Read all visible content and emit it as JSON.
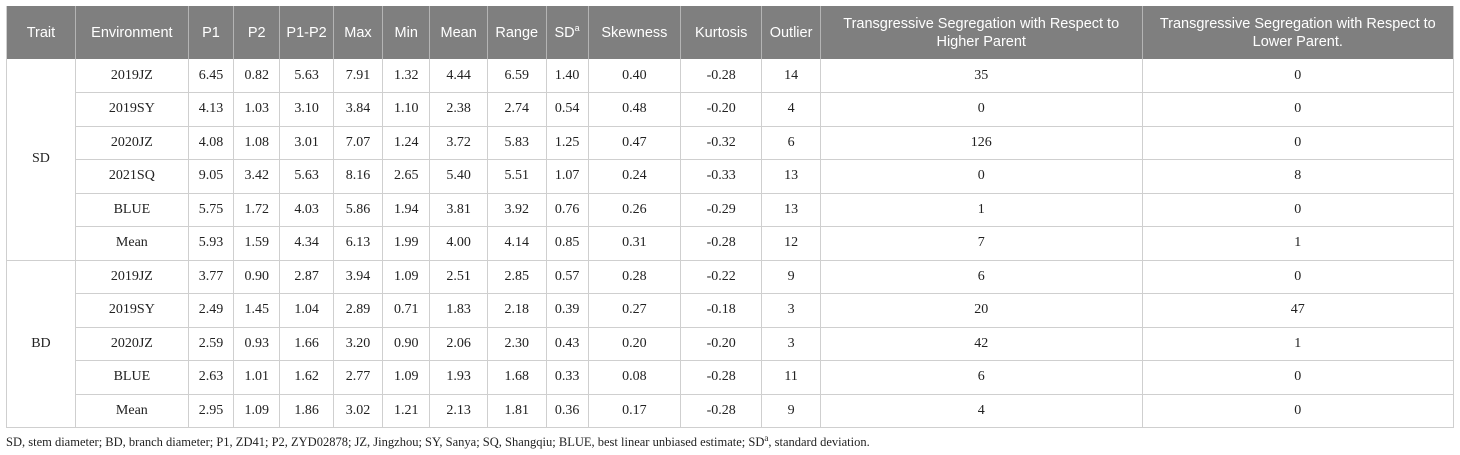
{
  "table": {
    "headers": [
      {
        "label": "Trait"
      },
      {
        "label": "Environment"
      },
      {
        "label": "P1"
      },
      {
        "label": "P2"
      },
      {
        "label": "P1-P2"
      },
      {
        "label": "Max"
      },
      {
        "label": "Min"
      },
      {
        "label": "Mean"
      },
      {
        "label": "Range"
      },
      {
        "label": "SD",
        "sup": "a"
      },
      {
        "label": "Skewness"
      },
      {
        "label": "Kurtosis"
      },
      {
        "label": "Outlier"
      },
      {
        "label": "Transgressive Segregation with Respect to Higher Parent"
      },
      {
        "label": "Transgressive Segregation with Respect to Lower Parent."
      }
    ],
    "groups": [
      {
        "trait": "SD",
        "rows": [
          [
            "2019JZ",
            "6.45",
            "0.82",
            "5.63",
            "7.91",
            "1.32",
            "4.44",
            "6.59",
            "1.40",
            "0.40",
            "-0.28",
            "14",
            "35",
            "0"
          ],
          [
            "2019SY",
            "4.13",
            "1.03",
            "3.10",
            "3.84",
            "1.10",
            "2.38",
            "2.74",
            "0.54",
            "0.48",
            "-0.20",
            "4",
            "0",
            "0"
          ],
          [
            "2020JZ",
            "4.08",
            "1.08",
            "3.01",
            "7.07",
            "1.24",
            "3.72",
            "5.83",
            "1.25",
            "0.47",
            "-0.32",
            "6",
            "126",
            "0"
          ],
          [
            "2021SQ",
            "9.05",
            "3.42",
            "5.63",
            "8.16",
            "2.65",
            "5.40",
            "5.51",
            "1.07",
            "0.24",
            "-0.33",
            "13",
            "0",
            "8"
          ],
          [
            "BLUE",
            "5.75",
            "1.72",
            "4.03",
            "5.86",
            "1.94",
            "3.81",
            "3.92",
            "0.76",
            "0.26",
            "-0.29",
            "13",
            "1",
            "0"
          ],
          [
            "Mean",
            "5.93",
            "1.59",
            "4.34",
            "6.13",
            "1.99",
            "4.00",
            "4.14",
            "0.85",
            "0.31",
            "-0.28",
            "12",
            "7",
            "1"
          ]
        ]
      },
      {
        "trait": "BD",
        "rows": [
          [
            "2019JZ",
            "3.77",
            "0.90",
            "2.87",
            "3.94",
            "1.09",
            "2.51",
            "2.85",
            "0.57",
            "0.28",
            "-0.22",
            "9",
            "6",
            "0"
          ],
          [
            "2019SY",
            "2.49",
            "1.45",
            "1.04",
            "2.89",
            "0.71",
            "1.83",
            "2.18",
            "0.39",
            "0.27",
            "-0.18",
            "3",
            "20",
            "47"
          ],
          [
            "2020JZ",
            "2.59",
            "0.93",
            "1.66",
            "3.20",
            "0.90",
            "2.06",
            "2.30",
            "0.43",
            "0.20",
            "-0.20",
            "3",
            "42",
            "1"
          ],
          [
            "BLUE",
            "2.63",
            "1.01",
            "1.62",
            "2.77",
            "1.09",
            "1.93",
            "1.68",
            "0.33",
            "0.08",
            "-0.28",
            "11",
            "6",
            "0"
          ],
          [
            "Mean",
            "2.95",
            "1.09",
            "1.86",
            "3.02",
            "1.21",
            "2.13",
            "1.81",
            "0.36",
            "0.17",
            "-0.28",
            "9",
            "4",
            "0"
          ]
        ]
      }
    ]
  },
  "footnote": {
    "before": "SD, stem diameter; BD, branch diameter; P1, ZD41; P2, ZYD02878; JZ, Jingzhou; SY, Sanya; SQ, Shangqiu; BLUE, best linear unbiased estimate; SD",
    "sup": "a",
    "after": ", standard deviation."
  },
  "colors": {
    "header_bg": "#7f7f7f",
    "header_text": "#ffffff",
    "grid": "#cfcfcf",
    "text": "#222222"
  }
}
